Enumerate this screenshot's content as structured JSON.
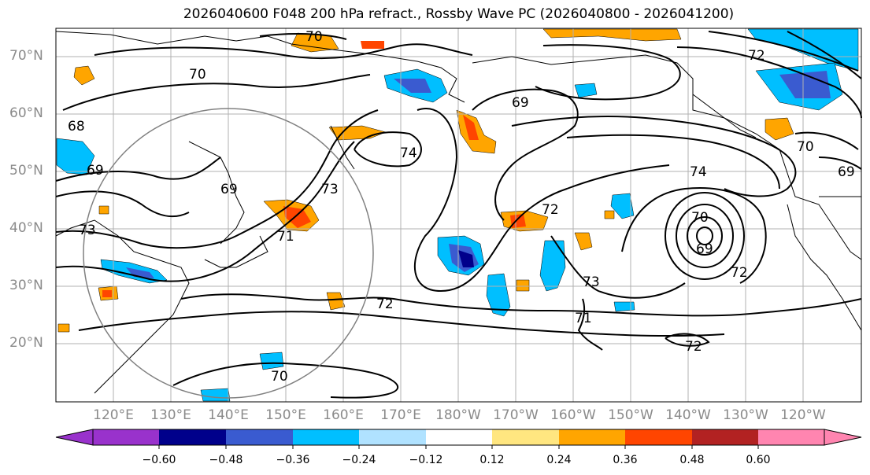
{
  "title": "2026040600 F048 200 hPa refract., Rossby Wave PC (2026040800 - 2026041200)",
  "lat_labels": [
    "70°N",
    "60°N",
    "50°N",
    "40°N",
    "30°N",
    "20°N"
  ],
  "lon_labels": [
    "120°E",
    "130°E",
    "140°E",
    "150°E",
    "160°E",
    "170°E",
    "180°W",
    "170°W",
    "160°W",
    "150°W",
    "140°W",
    "130°W",
    "120°W"
  ],
  "colorbar": {
    "ticks": [
      "−0.60",
      "−0.48",
      "−0.36",
      "−0.24",
      "−0.12",
      "0.12",
      "0.24",
      "0.36",
      "0.48",
      "0.60"
    ],
    "colors": [
      "#9932cc",
      "#00008b",
      "#3a5bd0",
      "#00bfff",
      "#b0e2ff",
      "#ffffff",
      "#ffe680",
      "#ffa500",
      "#ff4500",
      "#b22222",
      "#ff85b0"
    ]
  },
  "contour_labels": [
    "70",
    "70",
    "68",
    "69",
    "73",
    "69",
    "73",
    "74",
    "69",
    "72",
    "74",
    "70",
    "69",
    "70",
    "69",
    "72",
    "71",
    "73",
    "72",
    "71",
    "72",
    "70",
    "72"
  ]
}
